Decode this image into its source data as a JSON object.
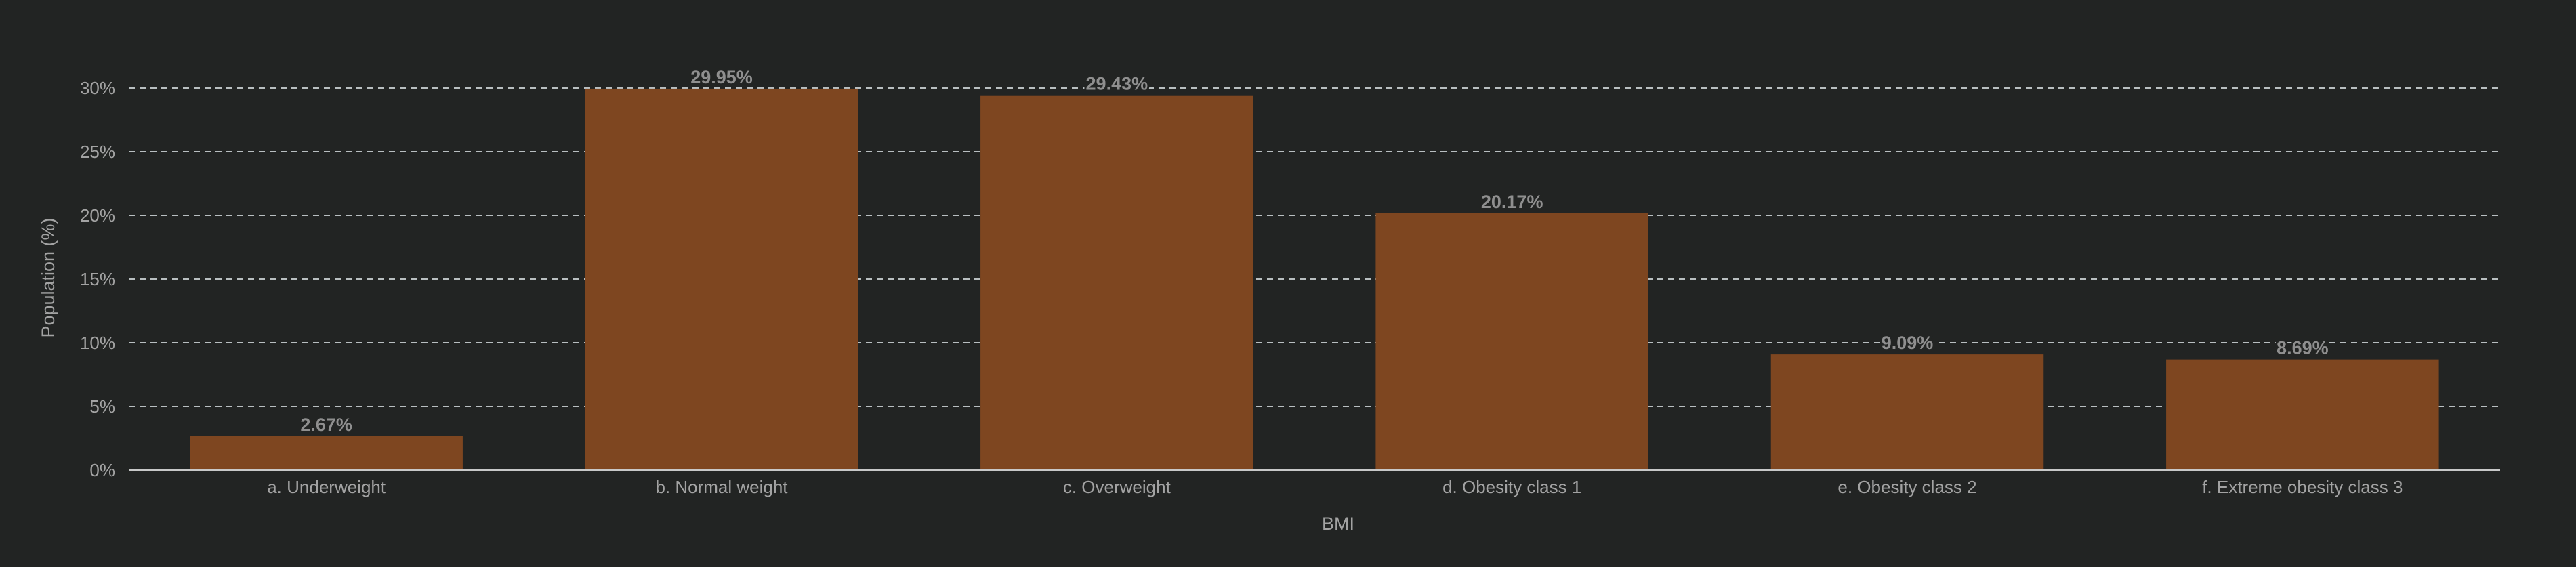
{
  "chart_data": {
    "type": "bar",
    "categories": [
      "a. Underweight",
      "b. Normal weight",
      "c. Overweight",
      "d. Obesity class 1",
      "e. Obesity class 2",
      "f. Extreme obesity class 3"
    ],
    "values": [
      2.67,
      29.95,
      29.43,
      20.17,
      9.09,
      8.69
    ],
    "data_labels": [
      "2.67%",
      "29.95%",
      "29.43%",
      "20.17%",
      "9.09%",
      "8.69%"
    ],
    "xlabel": "BMI",
    "ylabel": "Population (%)",
    "ylim": [
      0,
      30
    ],
    "yticks": [
      0,
      5,
      10,
      15,
      20,
      25,
      30
    ],
    "ytick_labels": [
      "0%",
      "5%",
      "10%",
      "15%",
      "20%",
      "25%",
      "30%"
    ],
    "grid": true,
    "colors": {
      "bar": "#7e4620",
      "background": "#222423",
      "grid": "#b9bfc1",
      "text": "#a3a3a3"
    }
  }
}
